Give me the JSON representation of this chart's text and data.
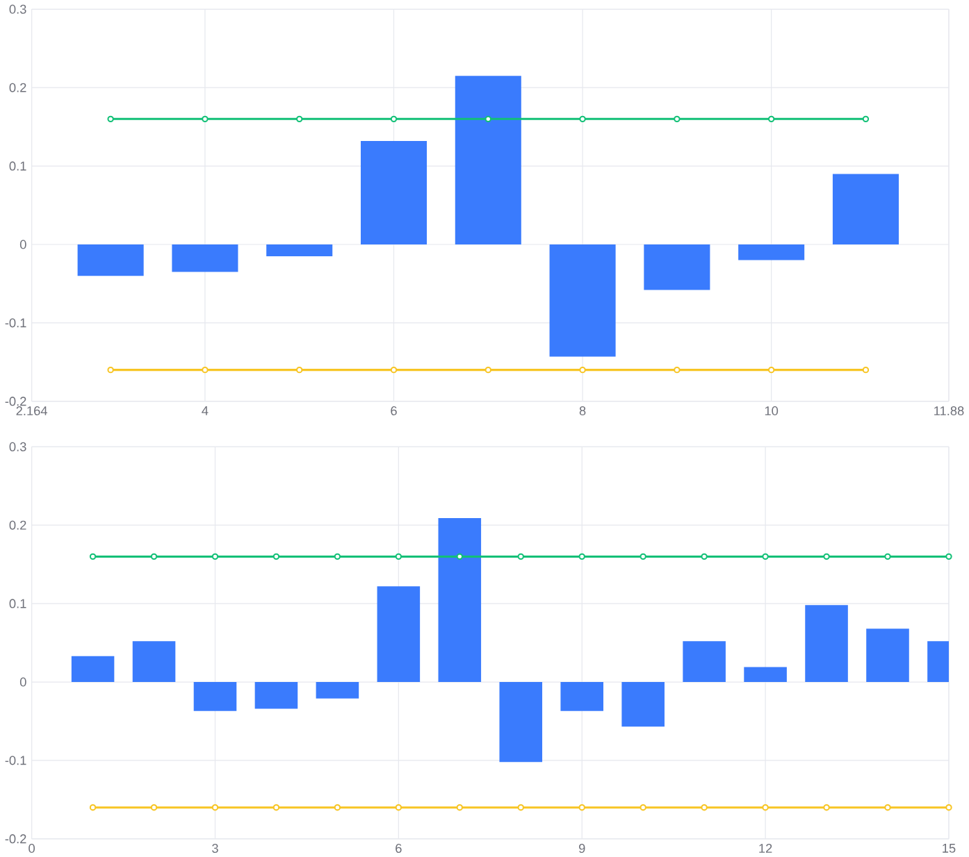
{
  "chart_data": [
    {
      "type": "bar",
      "xlim": [
        2.164,
        11.88
      ],
      "xticks": [
        2.164,
        4,
        6,
        8,
        10,
        11.88
      ],
      "ylim": [
        -0.2,
        0.3
      ],
      "yticks": [
        -0.2,
        -0.1,
        0,
        0.1,
        0.2,
        0.3
      ],
      "grid": true,
      "series": [
        {
          "color": "#3a7bfd",
          "x": [
            3,
            4,
            5,
            6,
            7,
            8,
            9,
            10,
            11
          ],
          "values": [
            -0.04,
            -0.035,
            -0.015,
            0.132,
            0.215,
            -0.143,
            -0.058,
            -0.02,
            0.09
          ]
        },
        {
          "type": "line",
          "color": "#12c077",
          "marker": "circle",
          "x": [
            3,
            4,
            5,
            6,
            7,
            8,
            9,
            10,
            11
          ],
          "values": [
            0.16,
            0.16,
            0.16,
            0.16,
            0.16,
            0.16,
            0.16,
            0.16,
            0.16
          ]
        },
        {
          "type": "line",
          "color": "#f7c524",
          "marker": "circle",
          "x": [
            3,
            4,
            5,
            6,
            7,
            8,
            9,
            10,
            11
          ],
          "values": [
            -0.16,
            -0.16,
            -0.16,
            -0.16,
            -0.16,
            -0.16,
            -0.16,
            -0.16,
            -0.16
          ]
        }
      ]
    },
    {
      "type": "bar",
      "xlim": [
        0,
        15
      ],
      "xticks": [
        0,
        3,
        6,
        9,
        12,
        15
      ],
      "ylim": [
        -0.2,
        0.3
      ],
      "yticks": [
        -0.2,
        -0.1,
        0,
        0.1,
        0.2,
        0.3
      ],
      "grid": true,
      "series": [
        {
          "color": "#3a7bfd",
          "x": [
            1,
            2,
            3,
            4,
            5,
            6,
            7,
            8,
            9,
            10,
            11,
            12,
            13,
            14,
            15
          ],
          "values": [
            0.033,
            0.052,
            -0.037,
            -0.034,
            -0.021,
            0.122,
            0.209,
            -0.102,
            -0.037,
            -0.057,
            0.052,
            0.019,
            0.098,
            0.068,
            0.052
          ]
        },
        {
          "type": "line",
          "color": "#12c077",
          "marker": "circle",
          "x": [
            1,
            2,
            3,
            4,
            5,
            6,
            7,
            8,
            9,
            10,
            11,
            12,
            13,
            14,
            15
          ],
          "values": [
            0.16,
            0.16,
            0.16,
            0.16,
            0.16,
            0.16,
            0.16,
            0.16,
            0.16,
            0.16,
            0.16,
            0.16,
            0.16,
            0.16,
            0.16
          ]
        },
        {
          "type": "line",
          "color": "#f7c524",
          "marker": "circle",
          "x": [
            1,
            2,
            3,
            4,
            5,
            6,
            7,
            8,
            9,
            10,
            11,
            12,
            13,
            14,
            15
          ],
          "values": [
            -0.16,
            -0.16,
            -0.16,
            -0.16,
            -0.16,
            -0.16,
            -0.16,
            -0.16,
            -0.16,
            -0.16,
            -0.16,
            -0.16,
            -0.16,
            -0.16,
            -0.16
          ]
        }
      ]
    }
  ]
}
